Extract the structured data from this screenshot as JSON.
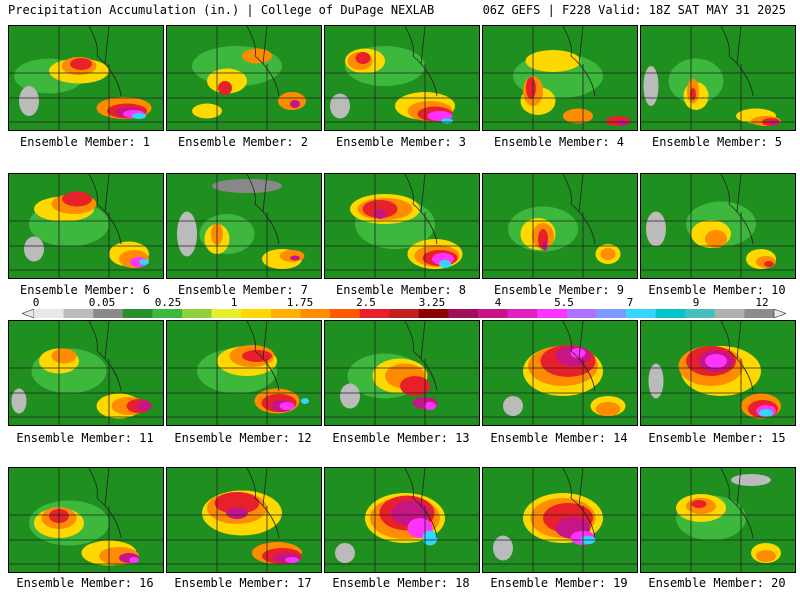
{
  "header": {
    "left": "Precipitation Accumulation (in.) | College of DuPage NEXLAB",
    "right": "06Z GEFS | F228 Valid: 18Z SAT MAY 31 2025"
  },
  "caption_prefix": "Ensemble Member: ",
  "members": [
    {
      "number": "1",
      "bg": "#1f8f1f",
      "blobs": [
        [
          "#3db83d",
          40,
          50,
          70,
          35
        ],
        [
          "#ffd800",
          70,
          45,
          60,
          25
        ],
        [
          "#ff8c00",
          70,
          40,
          35,
          18
        ],
        [
          "#e8202a",
          72,
          38,
          22,
          12
        ],
        [
          "#ff8c00",
          115,
          82,
          55,
          22
        ],
        [
          "#e8202a",
          118,
          85,
          40,
          15
        ],
        [
          "#c71585",
          120,
          86,
          28,
          10
        ],
        [
          "#ff33ff",
          125,
          88,
          22,
          8
        ],
        [
          "#33d6ff",
          130,
          90,
          14,
          6
        ],
        [
          "#bbbbbb",
          20,
          75,
          20,
          30
        ]
      ]
    },
    {
      "number": "2",
      "bg": "#1f8f1f",
      "blobs": [
        [
          "#3db83d",
          70,
          40,
          90,
          40
        ],
        [
          "#ffd800",
          60,
          55,
          40,
          25
        ],
        [
          "#ff8c00",
          90,
          30,
          30,
          15
        ],
        [
          "#e8202a",
          58,
          62,
          14,
          14
        ],
        [
          "#ff8c00",
          125,
          75,
          28,
          18
        ],
        [
          "#c71585",
          128,
          78,
          10,
          8
        ],
        [
          "#ffd800",
          40,
          85,
          30,
          15
        ]
      ]
    },
    {
      "number": "3",
      "bg": "#1f8f1f",
      "blobs": [
        [
          "#3db83d",
          60,
          40,
          80,
          40
        ],
        [
          "#ffd800",
          40,
          35,
          40,
          25
        ],
        [
          "#ff8c00",
          35,
          35,
          25,
          18
        ],
        [
          "#e8202a",
          38,
          32,
          15,
          12
        ],
        [
          "#ffd800",
          100,
          80,
          60,
          28
        ],
        [
          "#ff8c00",
          105,
          85,
          45,
          20
        ],
        [
          "#e8202a",
          110,
          88,
          35,
          15
        ],
        [
          "#ff33ff",
          115,
          90,
          25,
          10
        ],
        [
          "#33d6ff",
          122,
          95,
          12,
          5
        ],
        [
          "#bbbbbb",
          15,
          80,
          20,
          25
        ]
      ]
    },
    {
      "number": "4",
      "bg": "#1f8f1f",
      "blobs": [
        [
          "#3db83d",
          75,
          50,
          90,
          45
        ],
        [
          "#ffd800",
          70,
          35,
          55,
          22
        ],
        [
          "#ffd800",
          55,
          75,
          35,
          28
        ],
        [
          "#ff8c00",
          50,
          65,
          20,
          30
        ],
        [
          "#e8202a",
          48,
          62,
          10,
          22
        ],
        [
          "#ff8c00",
          95,
          90,
          30,
          15
        ],
        [
          "#e8202a",
          135,
          95,
          25,
          10
        ],
        [
          "#c71585",
          140,
          97,
          10,
          6
        ]
      ]
    },
    {
      "number": "5",
      "bg": "#1f8f1f",
      "blobs": [
        [
          "#3db83d",
          55,
          55,
          55,
          45
        ],
        [
          "#ffd800",
          55,
          70,
          25,
          28
        ],
        [
          "#ff8c00",
          52,
          65,
          12,
          25
        ],
        [
          "#e8202a",
          52,
          68,
          6,
          12
        ],
        [
          "#ffd800",
          115,
          90,
          40,
          15
        ],
        [
          "#ff8c00",
          125,
          95,
          30,
          10
        ],
        [
          "#e8202a",
          130,
          96,
          18,
          8
        ],
        [
          "#c71585",
          133,
          97,
          8,
          5
        ],
        [
          "#bbbbbb",
          10,
          60,
          15,
          40
        ]
      ]
    },
    {
      "number": "6",
      "bg": "#1f8f1f",
      "blobs": [
        [
          "#3db83d",
          60,
          50,
          80,
          45
        ],
        [
          "#ffd800",
          55,
          35,
          60,
          25
        ],
        [
          "#ff8c00",
          65,
          30,
          45,
          20
        ],
        [
          "#e8202a",
          68,
          25,
          30,
          15
        ],
        [
          "#ffd800",
          120,
          80,
          40,
          25
        ],
        [
          "#ff8c00",
          125,
          85,
          30,
          18
        ],
        [
          "#ff33ff",
          130,
          88,
          18,
          10
        ],
        [
          "#33d6ff",
          135,
          88,
          10,
          6
        ],
        [
          "#bbbbbb",
          25,
          75,
          20,
          25
        ]
      ]
    },
    {
      "number": "7",
      "bg": "#1f8f1f",
      "blobs": [
        [
          "#bbbbbb",
          20,
          60,
          20,
          45
        ],
        [
          "#888888",
          80,
          12,
          70,
          14
        ],
        [
          "#3db83d",
          60,
          60,
          55,
          40
        ],
        [
          "#ffd800",
          50,
          65,
          25,
          30
        ],
        [
          "#ff8c00",
          50,
          60,
          12,
          22
        ],
        [
          "#ffd800",
          115,
          85,
          40,
          20
        ],
        [
          "#ff8c00",
          125,
          82,
          25,
          12
        ],
        [
          "#c71585",
          128,
          84,
          10,
          5
        ]
      ]
    },
    {
      "number": "8",
      "bg": "#1f8f1f",
      "blobs": [
        [
          "#3db83d",
          70,
          50,
          80,
          50
        ],
        [
          "#ffd800",
          60,
          35,
          70,
          30
        ],
        [
          "#ff8c00",
          60,
          35,
          55,
          22
        ],
        [
          "#e8202a",
          55,
          35,
          35,
          18
        ],
        [
          "#c71585",
          55,
          40,
          12,
          10
        ],
        [
          "#ffd800",
          110,
          80,
          55,
          30
        ],
        [
          "#ff8c00",
          112,
          82,
          45,
          22
        ],
        [
          "#e8202a",
          115,
          84,
          35,
          16
        ],
        [
          "#ff33ff",
          118,
          85,
          22,
          12
        ],
        [
          "#33d6ff",
          120,
          90,
          12,
          8
        ]
      ]
    },
    {
      "number": "9",
      "bg": "#1f8f1f",
      "blobs": [
        [
          "#3db83d",
          60,
          55,
          70,
          45
        ],
        [
          "#ffd800",
          55,
          60,
          35,
          32
        ],
        [
          "#ff8c00",
          60,
          62,
          22,
          26
        ],
        [
          "#e8202a",
          60,
          65,
          10,
          20
        ],
        [
          "#c71585",
          62,
          72,
          5,
          10
        ],
        [
          "#ffd800",
          125,
          80,
          25,
          20
        ],
        [
          "#ff8c00",
          125,
          80,
          15,
          12
        ]
      ]
    },
    {
      "number": "10",
      "bg": "#1f8f1f",
      "blobs": [
        [
          "#3db83d",
          80,
          50,
          70,
          45
        ],
        [
          "#ffd800",
          70,
          60,
          40,
          28
        ],
        [
          "#ff8c00",
          75,
          65,
          22,
          18
        ],
        [
          "#ffd800",
          120,
          85,
          30,
          20
        ],
        [
          "#ff8c00",
          125,
          88,
          20,
          12
        ],
        [
          "#e8202a",
          128,
          90,
          10,
          6
        ],
        [
          "#bbbbbb",
          15,
          55,
          20,
          35
        ]
      ]
    },
    {
      "number": "11",
      "bg": "#1f8f1f",
      "blobs": [
        [
          "#3db83d",
          60,
          50,
          75,
          45
        ],
        [
          "#ffd800",
          50,
          40,
          40,
          25
        ],
        [
          "#ff8c00",
          55,
          35,
          25,
          15
        ],
        [
          "#ffd800",
          110,
          85,
          45,
          25
        ],
        [
          "#ff8c00",
          120,
          85,
          35,
          18
        ],
        [
          "#e8202a",
          130,
          85,
          25,
          14
        ],
        [
          "#c71585",
          135,
          85,
          15,
          10
        ],
        [
          "#bbbbbb",
          10,
          80,
          15,
          25
        ]
      ]
    },
    {
      "number": "12",
      "bg": "#1f8f1f",
      "blobs": [
        [
          "#3db83d",
          70,
          50,
          80,
          45
        ],
        [
          "#ffd800",
          80,
          40,
          60,
          30
        ],
        [
          "#ff8c00",
          85,
          35,
          45,
          22
        ],
        [
          "#e8202a",
          90,
          35,
          30,
          12
        ],
        [
          "#ff8c00",
          110,
          80,
          45,
          25
        ],
        [
          "#e8202a",
          112,
          82,
          35,
          18
        ],
        [
          "#c71585",
          115,
          85,
          22,
          12
        ],
        [
          "#ff33ff",
          120,
          85,
          15,
          8
        ],
        [
          "#33d6ff",
          138,
          80,
          8,
          6
        ]
      ]
    },
    {
      "number": "13",
      "bg": "#1f8f1f",
      "blobs": [
        [
          "#3db83d",
          60,
          55,
          75,
          45
        ],
        [
          "#ffd800",
          75,
          55,
          55,
          35
        ],
        [
          "#ff8c00",
          80,
          55,
          40,
          25
        ],
        [
          "#e8202a",
          90,
          65,
          30,
          20
        ],
        [
          "#c71585",
          100,
          82,
          25,
          12
        ],
        [
          "#ff33ff",
          105,
          85,
          12,
          8
        ],
        [
          "#bbbbbb",
          25,
          75,
          20,
          25
        ]
      ]
    },
    {
      "number": "14",
      "bg": "#1f8f1f",
      "blobs": [
        [
          "#ffd800",
          80,
          50,
          80,
          50
        ],
        [
          "#ff8c00",
          80,
          45,
          70,
          40
        ],
        [
          "#e8202a",
          85,
          40,
          55,
          32
        ],
        [
          "#c71585",
          90,
          35,
          35,
          20
        ],
        [
          "#ff33ff",
          95,
          32,
          15,
          10
        ],
        [
          "#ffd800",
          125,
          85,
          35,
          20
        ],
        [
          "#ff8c00",
          125,
          88,
          25,
          14
        ],
        [
          "#bbbbbb",
          30,
          85,
          20,
          20
        ]
      ]
    },
    {
      "number": "15",
      "bg": "#1f8f1f",
      "blobs": [
        [
          "#ffd800",
          80,
          50,
          80,
          50
        ],
        [
          "#ff8c00",
          70,
          45,
          65,
          40
        ],
        [
          "#e8202a",
          70,
          40,
          50,
          30
        ],
        [
          "#c71585",
          75,
          40,
          35,
          22
        ],
        [
          "#ff33ff",
          75,
          40,
          22,
          14
        ],
        [
          "#ff8c00",
          120,
          85,
          40,
          25
        ],
        [
          "#e8202a",
          122,
          88,
          30,
          18
        ],
        [
          "#ff33ff",
          125,
          90,
          20,
          12
        ],
        [
          "#33d6ff",
          125,
          92,
          14,
          8
        ],
        [
          "#bbbbbb",
          15,
          60,
          15,
          35
        ]
      ]
    },
    {
      "number": "16",
      "bg": "#1f8f1f",
      "blobs": [
        [
          "#3db83d",
          60,
          55,
          80,
          45
        ],
        [
          "#ffd800",
          50,
          55,
          50,
          30
        ],
        [
          "#ff8c00",
          50,
          50,
          35,
          22
        ],
        [
          "#e8202a",
          50,
          48,
          20,
          14
        ],
        [
          "#ffd800",
          100,
          85,
          55,
          25
        ],
        [
          "#ff8c00",
          110,
          88,
          40,
          18
        ],
        [
          "#c71585",
          120,
          90,
          20,
          10
        ],
        [
          "#ff33ff",
          125,
          92,
          10,
          6
        ]
      ]
    },
    {
      "number": "17",
      "bg": "#1f8f1f",
      "blobs": [
        [
          "#ffd800",
          75,
          45,
          80,
          45
        ],
        [
          "#ff8c00",
          70,
          40,
          60,
          32
        ],
        [
          "#e8202a",
          70,
          35,
          45,
          22
        ],
        [
          "#c71585",
          70,
          45,
          22,
          12
        ],
        [
          "#ff8c00",
          110,
          85,
          50,
          22
        ],
        [
          "#e8202a",
          115,
          88,
          40,
          16
        ],
        [
          "#c71585",
          120,
          90,
          28,
          10
        ],
        [
          "#ff33ff",
          125,
          92,
          14,
          6
        ]
      ]
    },
    {
      "number": "18",
      "bg": "#1f8f1f",
      "blobs": [
        [
          "#ffd800",
          80,
          50,
          80,
          50
        ],
        [
          "#ff8c00",
          80,
          50,
          70,
          42
        ],
        [
          "#e8202a",
          82,
          45,
          55,
          35
        ],
        [
          "#c71585",
          85,
          45,
          38,
          25
        ],
        [
          "#ff33ff",
          95,
          60,
          25,
          20
        ],
        [
          "#33d6ff",
          105,
          70,
          15,
          15
        ],
        [
          "#bbbbbb",
          20,
          85,
          20,
          20
        ]
      ]
    },
    {
      "number": "19",
      "bg": "#1f8f1f",
      "blobs": [
        [
          "#ffd800",
          80,
          50,
          80,
          50
        ],
        [
          "#ff8c00",
          80,
          50,
          65,
          40
        ],
        [
          "#e8202a",
          85,
          50,
          50,
          30
        ],
        [
          "#c71585",
          90,
          60,
          35,
          22
        ],
        [
          "#ff33ff",
          100,
          70,
          25,
          14
        ],
        [
          "#33d6ff",
          105,
          72,
          15,
          8
        ],
        [
          "#bbbbbb",
          20,
          80,
          20,
          25
        ]
      ]
    },
    {
      "number": "20",
      "bg": "#1f8f1f",
      "blobs": [
        [
          "#3db83d",
          70,
          50,
          70,
          45
        ],
        [
          "#ffd800",
          60,
          40,
          50,
          28
        ],
        [
          "#ff8c00",
          60,
          38,
          30,
          16
        ],
        [
          "#e8202a",
          58,
          36,
          15,
          8
        ],
        [
          "#ffd800",
          125,
          85,
          30,
          20
        ],
        [
          "#ff8c00",
          125,
          88,
          20,
          12
        ],
        [
          "#bbbbbb",
          110,
          12,
          40,
          12
        ]
      ]
    }
  ],
  "colorbar": {
    "labels": [
      "0",
      "0.05",
      "0.25",
      "1",
      "1.75",
      "2.5",
      "3.25",
      "4",
      "5.5",
      "7",
      "9",
      "12"
    ],
    "colors": [
      "#e8e8e8",
      "#bbbbbb",
      "#8a8a8a",
      "#2a8f2a",
      "#3db83d",
      "#8fd13d",
      "#e6ef2a",
      "#ffd800",
      "#ffb000",
      "#ff8c00",
      "#ff5a00",
      "#e8202a",
      "#c21f20",
      "#8b0000",
      "#a0105a",
      "#c71585",
      "#e020c0",
      "#ff33ff",
      "#b070ff",
      "#7d9bff",
      "#33d6ff",
      "#00c8c8",
      "#48bfbf",
      "#b0b0b0",
      "#8c8c8c"
    ]
  }
}
